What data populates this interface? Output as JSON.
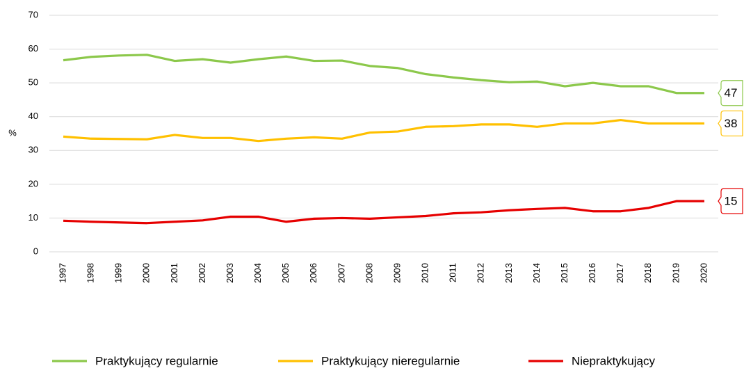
{
  "chart_data": {
    "type": "line",
    "y_label": "%",
    "categories": [
      "1997",
      "1998",
      "1999",
      "2000",
      "2001",
      "2002",
      "2003",
      "2004",
      "2005",
      "2006",
      "2007",
      "2008",
      "2009",
      "2010",
      "2011",
      "2012",
      "2013",
      "2014",
      "2015",
      "2016",
      "2017",
      "2018",
      "2019",
      "2020"
    ],
    "series": [
      {
        "name": "Praktykujący regularnie",
        "color": "#8cc84b",
        "values": [
          56.7,
          57.7,
          58.1,
          58.3,
          56.5,
          57,
          56,
          57,
          57.8,
          56.5,
          56.6,
          55,
          54.4,
          52.6,
          51.6,
          50.8,
          50.2,
          50.4,
          49,
          50,
          49,
          49,
          47,
          47
        ]
      },
      {
        "name": "Praktykujący nieregularnie",
        "color": "#ffc000",
        "values": [
          34.1,
          33.5,
          33.4,
          33.3,
          34.6,
          33.7,
          33.7,
          32.8,
          33.5,
          33.9,
          33.5,
          35.3,
          35.6,
          37,
          37.2,
          37.7,
          37.7,
          37,
          38,
          38,
          39,
          38,
          38,
          38
        ]
      },
      {
        "name": "Niepraktykujący",
        "color": "#e60000",
        "values": [
          9.2,
          8.9,
          8.7,
          8.5,
          8.9,
          9.3,
          10.4,
          10.4,
          8.9,
          9.8,
          10,
          9.8,
          10.2,
          10.6,
          11.4,
          11.7,
          12.3,
          12.7,
          13,
          12,
          12,
          13,
          15,
          15
        ]
      }
    ],
    "ylim": [
      0,
      70
    ],
    "yticks": [
      0,
      10,
      20,
      30,
      40,
      50,
      60,
      70
    ],
    "grid": true,
    "legend": "bottom"
  }
}
